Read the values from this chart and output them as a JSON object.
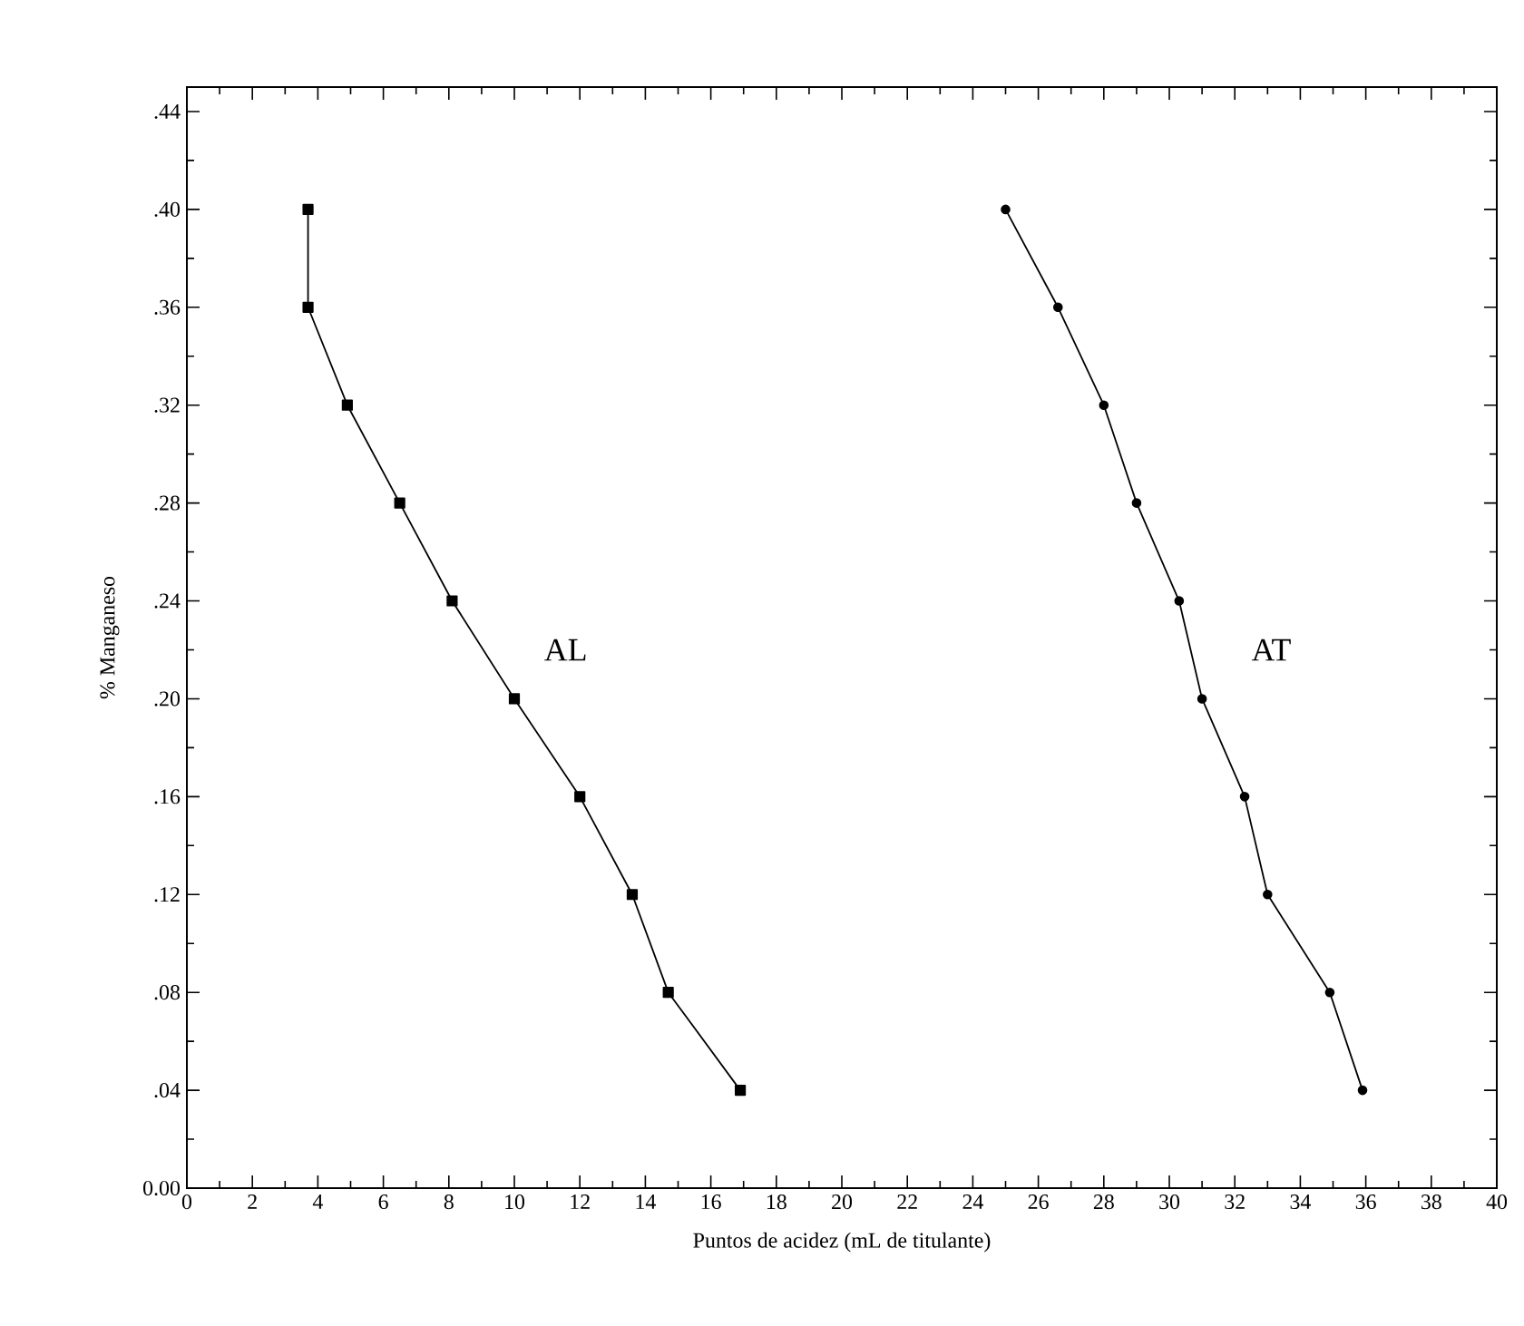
{
  "chart_data": {
    "type": "line",
    "xlabel": "Puntos de acidez (mL de titulante)",
    "ylabel": "% Manganeso",
    "xlim": [
      0,
      40
    ],
    "ylim": [
      0,
      0.45
    ],
    "xticks": [
      0,
      2,
      4,
      6,
      8,
      10,
      12,
      14,
      16,
      18,
      20,
      22,
      24,
      26,
      28,
      30,
      32,
      34,
      36,
      38,
      40
    ],
    "yticks": [
      {
        "value": 0,
        "label": "0.00"
      },
      {
        "value": 0.04,
        "label": ".04"
      },
      {
        "value": 0.08,
        "label": ".08"
      },
      {
        "value": 0.12,
        "label": ".12"
      },
      {
        "value": 0.16,
        "label": ".16"
      },
      {
        "value": 0.2,
        "label": ".20"
      },
      {
        "value": 0.24,
        "label": ".24"
      },
      {
        "value": 0.28,
        "label": ".28"
      },
      {
        "value": 0.32,
        "label": ".32"
      },
      {
        "value": 0.36,
        "label": ".36"
      },
      {
        "value": 0.4,
        "label": ".40"
      },
      {
        "value": 0.44,
        "label": ".44"
      }
    ],
    "grid": false,
    "line_style": "solid",
    "series": [
      {
        "name": "AL",
        "color": "#000000",
        "marker": "square",
        "x": [
          3.7,
          3.7,
          4.9,
          6.5,
          8.1,
          10.0,
          12.0,
          13.6,
          14.7,
          16.9
        ],
        "values": [
          0.4,
          0.36,
          0.32,
          0.28,
          0.24,
          0.2,
          0.16,
          0.12,
          0.08,
          0.04
        ]
      },
      {
        "name": "AT",
        "color": "#000000",
        "marker": "circle",
        "x": [
          25.0,
          26.6,
          28.0,
          29.0,
          30.3,
          31.0,
          32.3,
          33.0,
          34.9,
          35.9
        ],
        "values": [
          0.4,
          0.36,
          0.32,
          0.28,
          0.24,
          0.2,
          0.16,
          0.12,
          0.08,
          0.04
        ]
      }
    ]
  }
}
